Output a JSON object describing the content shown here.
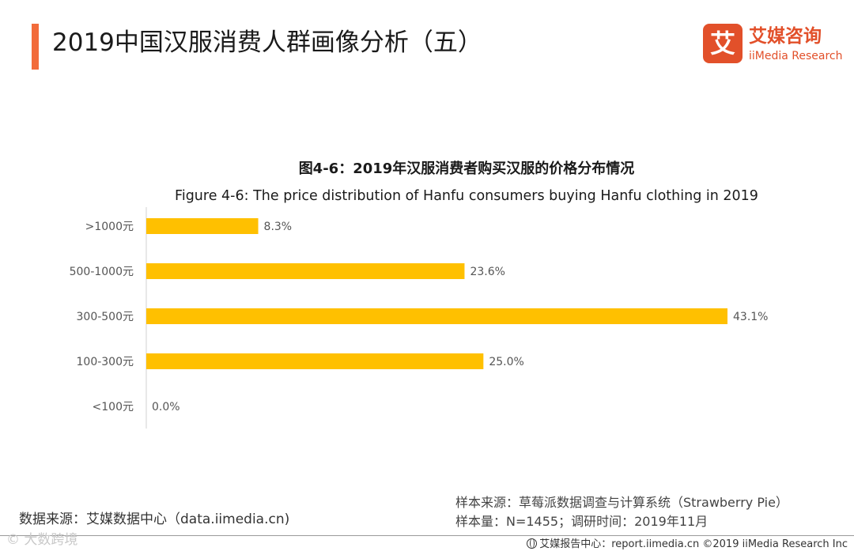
{
  "header": {
    "title": "2019中国汉服消费人群画像分析（五）",
    "accent_color": "#F26B3A"
  },
  "logo": {
    "box_char": "艾",
    "cn": "艾媒咨询",
    "en": "iiMedia Research",
    "color": "#E2502A"
  },
  "chart_data": {
    "type": "bar",
    "orientation": "horizontal",
    "title": "图4-6：2019年汉服消费者购买汉服的价格分布情况",
    "subtitle": "Figure 4-6: The price distribution of Hanfu consumers buying Hanfu clothing in 2019",
    "categories": [
      ">1000元",
      "500-1000元",
      "300-500元",
      "100-300元",
      "<100元"
    ],
    "values": [
      8.3,
      23.6,
      43.1,
      25.0,
      0.0
    ],
    "value_labels": [
      "8.3%",
      "23.6%",
      "43.1%",
      "25.0%",
      "0.0%"
    ],
    "unit": "%",
    "xlim": [
      0,
      43.1
    ],
    "bar_color": "#FFC000",
    "xlabel": "",
    "ylabel": "",
    "grid": false
  },
  "footer": {
    "data_source": "数据来源：艾媒数据中心（data.iimedia.cn)",
    "sample_source": "样本来源：草莓派数据调查与计算系统（Strawberry Pie）",
    "sample_size": "样本量：N=1455；调研时间：2019年11月",
    "watermark": "©  大数跨境",
    "right_text": "艾媒报告中心：report.iimedia.cn  ©2019  iiMedia Research  Inc"
  }
}
